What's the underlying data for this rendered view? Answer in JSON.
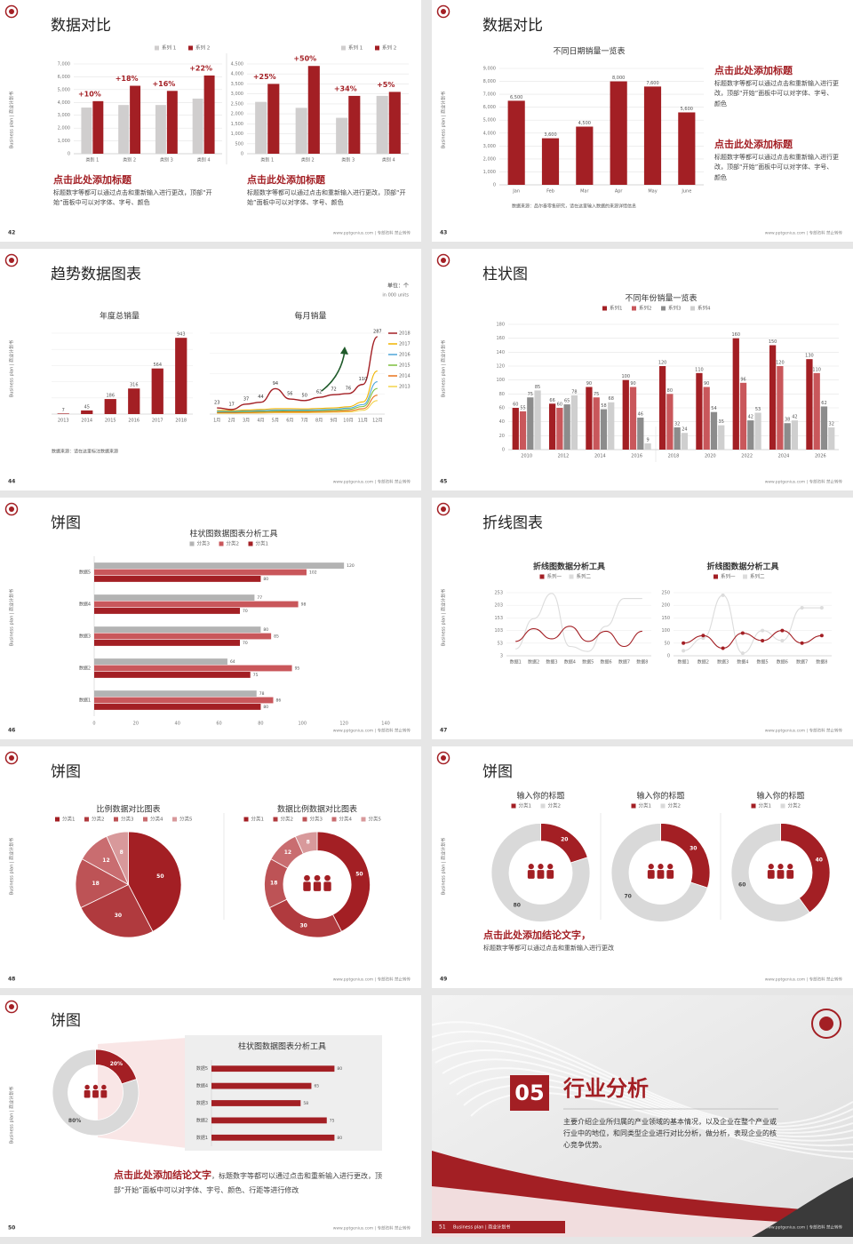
{
  "slides": [
    {
      "number": "42",
      "title": "数据对比",
      "side": "Business plan | 商业计划书",
      "footer": "www.pptgenius.com | 专部资料 禁止转传",
      "charts": [
        {
          "type": "bar",
          "categories": [
            "类别 1",
            "类别 2",
            "类别 3",
            "类别 4"
          ],
          "legend": "top-right",
          "grid": true,
          "series": [
            {
              "name": "系列 1",
              "color": "#d0cece",
              "values": [
                3600,
                3800,
                3800,
                4300
              ]
            },
            {
              "name": "系列 2",
              "color": "#a31f24",
              "values": [
                4100,
                5300,
                4900,
                6100
              ]
            }
          ],
          "annotations": [
            "+10%",
            "+18%",
            "+16%",
            "+22%"
          ],
          "ylim": [
            0,
            7000
          ],
          "yticks": [
            0,
            {
              "value": 1000,
              "label": "1,000"
            },
            {
              "value": 2000,
              "label": "2,000"
            },
            {
              "value": 3000,
              "label": "3,000"
            },
            {
              "value": 4000,
              "label": "4,000"
            },
            {
              "value": 5000,
              "label": "5,000"
            },
            {
              "value": 6000,
              "label": "6,000"
            },
            {
              "value": 7000,
              "label": "7,000"
            }
          ]
        },
        {
          "type": "bar",
          "categories": [
            "类别 1",
            "类别 2",
            "类别 3",
            "类别 4"
          ],
          "legend": "top-right",
          "grid": true,
          "series": [
            {
              "name": "系列 1",
              "color": "#d0cece",
              "values": [
                2600,
                2300,
                1800,
                2900
              ]
            },
            {
              "name": "系列 2",
              "color": "#a31f24",
              "values": [
                3500,
                4400,
                2900,
                3100
              ]
            }
          ],
          "annotations": [
            "+25%",
            "+50%",
            "+34%",
            "+5%"
          ],
          "ylim": [
            0,
            4500
          ],
          "yticks": [
            0,
            500,
            {
              "value": 1000,
              "label": "1,000"
            },
            {
              "value": 1500,
              "label": "1,500"
            },
            {
              "value": 2000,
              "label": "2,000"
            },
            {
              "value": 2500,
              "label": "2,500"
            },
            {
              "value": 3000,
              "label": "3,000"
            },
            {
              "value": 3500,
              "label": "3,500"
            },
            {
              "value": 4000,
              "label": "4,000"
            },
            {
              "value": 4500,
              "label": "4,500"
            }
          ]
        }
      ],
      "notes": [
        {
          "heading": "点击此处添加标题",
          "body": "标题数字等都可以通过点击和重新输入进行更改，顶部“开始”面板中可以对字体、字号、颜色"
        },
        {
          "heading": "点击此处添加标题",
          "body": "标题数字等都可以通过点击和重新输入进行更改，顶部“开始”面板中可以对字体、字号、颜色"
        }
      ]
    },
    {
      "number": "43",
      "title": "数据对比",
      "side": "Business plan | 商业计划书",
      "footer": "www.pptgenius.com | 专部资料 禁止转传",
      "charts": [
        {
          "type": "bar",
          "title": "不同日期销量一览表",
          "categories": [
            "Jan",
            "Feb",
            "Mar",
            "Apr",
            "May",
            "June"
          ],
          "color": "#a31f24",
          "grid": true,
          "values": [
            6500,
            3600,
            4500,
            8000,
            7600,
            5600
          ],
          "value_labels": [
            "6,500",
            "3,600",
            "4,500",
            "8,000",
            "7,600",
            "5,600"
          ],
          "ylim": [
            0,
            9000
          ],
          "yticks": [
            0,
            {
              "value": 1000,
              "label": "1,000"
            },
            {
              "value": 2000,
              "label": "2,000"
            },
            {
              "value": 3000,
              "label": "3,000"
            },
            {
              "value": 4000,
              "label": "4,000"
            },
            {
              "value": 5000,
              "label": "5,000"
            },
            {
              "value": 6000,
              "label": "6,000"
            },
            {
              "value": 7000,
              "label": "7,000"
            },
            {
              "value": 8000,
              "label": "8,000"
            },
            {
              "value": 9000,
              "label": "9,000"
            }
          ]
        }
      ],
      "source": "数据来源：品尔泰零售研究，请在这里输入数据的来源详情信息",
      "notes": [
        {
          "heading": "点击此处添加标题",
          "body": "标题数字等都可以通过点击和重新输入进行更改，顶部“开始”面板中可以对字体、字号、颜色"
        },
        {
          "heading": "点击此处添加标题",
          "body": "标题数字等都可以通过点击和重新输入进行更改，顶部“开始”面板中可以对字体、字号、颜色"
        }
      ]
    },
    {
      "number": "44",
      "title": "趋势数据图表",
      "side": "Business plan | 商业计划书",
      "footer": "www.pptgenius.com | 专部资料 禁止转传",
      "unit": "单位：个",
      "unit_en": "in 000 units",
      "charts": [
        {
          "type": "bar",
          "title": "年度总销量",
          "categories": [
            "2013",
            "2014",
            "2015",
            "2016",
            "2017",
            "2018"
          ],
          "color": "#a31f24",
          "labels": true,
          "grid": true,
          "values": [
            7,
            45,
            186,
            316,
            564,
            943
          ],
          "ylim": [
            0,
            1000
          ]
        },
        {
          "type": "line",
          "title": "每月销量",
          "categories": [
            "1月",
            "2月",
            "3月",
            "4月",
            "5月",
            "6月",
            "7月",
            "8月",
            "9月",
            "10月",
            "11月",
            "12月"
          ],
          "legend": "right",
          "grid": true,
          "ylim": [
            0,
            300
          ],
          "series": [
            {
              "name": "2018",
              "color": "#a31f24",
              "labels": true,
              "values": [
                23,
                17,
                37,
                44,
                94,
                56,
                50,
                62,
                72,
                76,
                110,
                287
              ]
            },
            {
              "name": "2017",
              "color": "#f0b400",
              "values": [
                14,
                13,
                15,
                17,
                20,
                20,
                19,
                21,
                23,
                27,
                45,
                160
              ]
            },
            {
              "name": "2016",
              "color": "#4ea5d9",
              "values": [
                10,
                10,
                12,
                13,
                15,
                15,
                15,
                16,
                18,
                22,
                35,
                120
              ]
            },
            {
              "name": "2015",
              "color": "#7cbf3e",
              "values": [
                8,
                8,
                9,
                10,
                11,
                12,
                12,
                13,
                14,
                17,
                28,
                95
              ]
            },
            {
              "name": "2014",
              "color": "#e8731b",
              "values": [
                5,
                5,
                6,
                7,
                8,
                8,
                8,
                9,
                10,
                12,
                20,
                70
              ]
            },
            {
              "name": "2013",
              "color": "#f2d24b",
              "values": [
                3,
                3,
                4,
                4,
                5,
                5,
                5,
                6,
                7,
                8,
                14,
                50
              ]
            }
          ]
        }
      ],
      "source": "数据来源：请在这里标注数据来源"
    },
    {
      "number": "45",
      "title": "柱状图",
      "side": "Business plan | 商业计划书",
      "footer": "www.pptgenius.com | 专部资料 禁止转传",
      "charts": [
        {
          "type": "bar",
          "title": "不同年份销量一览表",
          "legend": "top",
          "grid": true,
          "categories": [
            "2010",
            "2012",
            "2014",
            "2016",
            "2018",
            "2020",
            "2022",
            "2024",
            "2026"
          ],
          "ylim": [
            0,
            180
          ],
          "yticks": [
            0,
            20,
            40,
            60,
            80,
            100,
            120,
            140,
            160,
            180
          ],
          "series": [
            {
              "name": "系列1",
              "color": "#a31f24",
              "labels": true,
              "values": [
                60,
                66,
                90,
                100,
                120,
                110,
                160,
                150,
                130
              ]
            },
            {
              "name": "系列2",
              "color": "#c9575b",
              "labels": true,
              "values": [
                55,
                60,
                75,
                90,
                80,
                90,
                96,
                120,
                110
              ]
            },
            {
              "name": "系列3",
              "color": "#8c8c8c",
              "labels": true,
              "values": [
                75,
                65,
                58,
                46,
                32,
                54,
                42,
                38,
                62
              ]
            },
            {
              "name": "系列4",
              "color": "#cfcfcf",
              "labels": true,
              "values": [
                85,
                78,
                68,
                9,
                24,
                35,
                53,
                42,
                32
              ]
            }
          ]
        }
      ]
    },
    {
      "number": "46",
      "title": "饼图",
      "side": "Business plan | 商业计划书",
      "footer": "www.pptgenius.com | 专部资料 禁止转传",
      "charts": [
        {
          "type": "hbar",
          "title": "柱状图数据图表分析工具",
          "legend": "top",
          "categories": [
            "数据1",
            "数据2",
            "数据3",
            "数据4",
            "数据5"
          ],
          "xlim": [
            0,
            140
          ],
          "xticks": [
            0,
            20,
            40,
            60,
            80,
            100,
            120,
            140
          ],
          "series": [
            {
              "name": "分类3",
              "color": "#b3b3b3",
              "labels": true,
              "values": [
                78,
                64,
                80,
                77,
                120
              ]
            },
            {
              "name": "分类2",
              "color": "#c9575b",
              "labels": true,
              "values": [
                86,
                95,
                85,
                98,
                102
              ]
            },
            {
              "name": "分类1",
              "color": "#a31f24",
              "labels": true,
              "values": [
                80,
                75,
                70,
                70,
                80
              ]
            }
          ]
        }
      ]
    },
    {
      "number": "47",
      "title": "折线图表",
      "side": "Business plan | 商业计划书",
      "footer": "www.pptgenius.com | 专部资料 禁止转传",
      "charts": [
        {
          "type": "line",
          "title": "折线图数据分析工具",
          "legend": "top",
          "categories": [
            "数据1",
            "数据2",
            "数据3",
            "数据4",
            "数据5",
            "数据6",
            "数据7",
            "数据8"
          ],
          "ylim": [
            3,
            253
          ],
          "yticks": [
            3,
            53,
            103,
            153,
            203,
            253
          ],
          "series": [
            {
              "name": "系列一",
              "color": "#a31f24",
              "values": [
                60,
                110,
                70,
                120,
                60,
                100,
                40,
                100
              ]
            },
            {
              "name": "系列二",
              "color": "#dcdcdc",
              "values": [
                30,
                150,
                250,
                40,
                20,
                120,
                230,
                230
              ]
            }
          ]
        },
        {
          "type": "line",
          "title": "折线图数据分析工具",
          "legend": "top",
          "categories": [
            "数据1",
            "数据2",
            "数据3",
            "数据4",
            "数据5",
            "数据6",
            "数据7",
            "数据8"
          ],
          "ylim": [
            0,
            250
          ],
          "yticks": [
            0,
            50,
            100,
            150,
            200,
            250
          ],
          "series": [
            {
              "name": "系列一",
              "color": "#a31f24",
              "marker": true,
              "values": [
                50,
                80,
                30,
                90,
                60,
                100,
                50,
                80
              ]
            },
            {
              "name": "系列二",
              "color": "#dcdcdc",
              "marker": true,
              "values": [
                20,
                70,
                240,
                10,
                100,
                60,
                190,
                190
              ]
            }
          ]
        }
      ]
    },
    {
      "number": "48",
      "title": "饼图",
      "side": "Business plan | 商业计划书",
      "footer": "www.pptgenius.com | 专部资料 禁止转传",
      "charts": [
        {
          "type": "pie",
          "title": "比例数据对比图表",
          "legend": "top",
          "categories": [
            "分类1",
            "分类2",
            "分类3",
            "分类4",
            "分类5"
          ],
          "values": [
            50,
            30,
            18,
            12,
            8
          ],
          "colors": [
            "#a31f24",
            "#b03a3e",
            "#bd5356",
            "#c96d70",
            "#d8999b"
          ]
        },
        {
          "type": "donut",
          "title": "数据比例数据对比图表",
          "legend": "top",
          "categories": [
            "分类1",
            "分类2",
            "分类3",
            "分类4",
            "分类5"
          ],
          "values": [
            50,
            30,
            18,
            12,
            8
          ],
          "colors": [
            "#a31f24",
            "#b03a3e",
            "#bd5356",
            "#c96d70",
            "#d8999b"
          ]
        }
      ]
    },
    {
      "number": "49",
      "title": "饼图",
      "side": "Business plan | 商业计划书",
      "footer": "www.pptgenius.com | 专部资料 禁止转传",
      "charts": [
        {
          "type": "donut",
          "title": "输入你的标题",
          "legend": "top",
          "categories": [
            "分类1",
            "分类2"
          ],
          "values": [
            20,
            80
          ],
          "colors": [
            "#a31f24",
            "#d9d9d9"
          ]
        },
        {
          "type": "donut",
          "title": "输入你的标题",
          "legend": "top",
          "categories": [
            "分类1",
            "分类2"
          ],
          "values": [
            30,
            70
          ],
          "colors": [
            "#a31f24",
            "#d9d9d9"
          ]
        },
        {
          "type": "donut",
          "title": "输入你的标题",
          "legend": "top",
          "categories": [
            "分类1",
            "分类2"
          ],
          "values": [
            40,
            60
          ],
          "colors": [
            "#a31f24",
            "#d9d9d9"
          ]
        }
      ],
      "notes": [
        {
          "heading": "点击此处添加结论文字，",
          "body": "标题数字等都可以通过点击和重新输入进行更改"
        }
      ]
    },
    {
      "number": "50",
      "title": "饼图",
      "side": "Business plan | 商业计划书",
      "footer": "www.pptgenius.com | 专部资料 禁止转传",
      "charts": [
        {
          "type": "donut",
          "values": [
            20,
            80
          ],
          "value_labels": [
            "20%",
            "80%"
          ],
          "colors": [
            "#a31f24",
            "#d9d9d9"
          ]
        },
        {
          "type": "hbar",
          "title": "柱状图数据图表分析工具",
          "categories": [
            "数据1",
            "数据2",
            "数据3",
            "数据4",
            "数据5"
          ],
          "color": "#a31f24",
          "labels": true,
          "values": [
            80,
            75,
            58,
            65,
            80
          ],
          "xlim": [
            0,
            100
          ]
        }
      ],
      "notes": [
        {
          "heading": "点击此处添加结论文字",
          "body": "，标题数字等都可以通过点击和重新输入进行更改，顶部“开始”面板中可以对字体、字号、颜色、行距等进行修改"
        }
      ]
    },
    {
      "number": "51",
      "side": "Business plan | 商业计划书",
      "footer": "www.pptgenius.com | 专部资料 禁止转传",
      "chapter": "05",
      "title": "行业分析",
      "body": "主要介绍企业所归属的产业领域的基本情况，以及企业在整个产业或行业中的地位，和同类型企业进行对比分析，做分析，表现企业的核心竞争优势。"
    }
  ]
}
